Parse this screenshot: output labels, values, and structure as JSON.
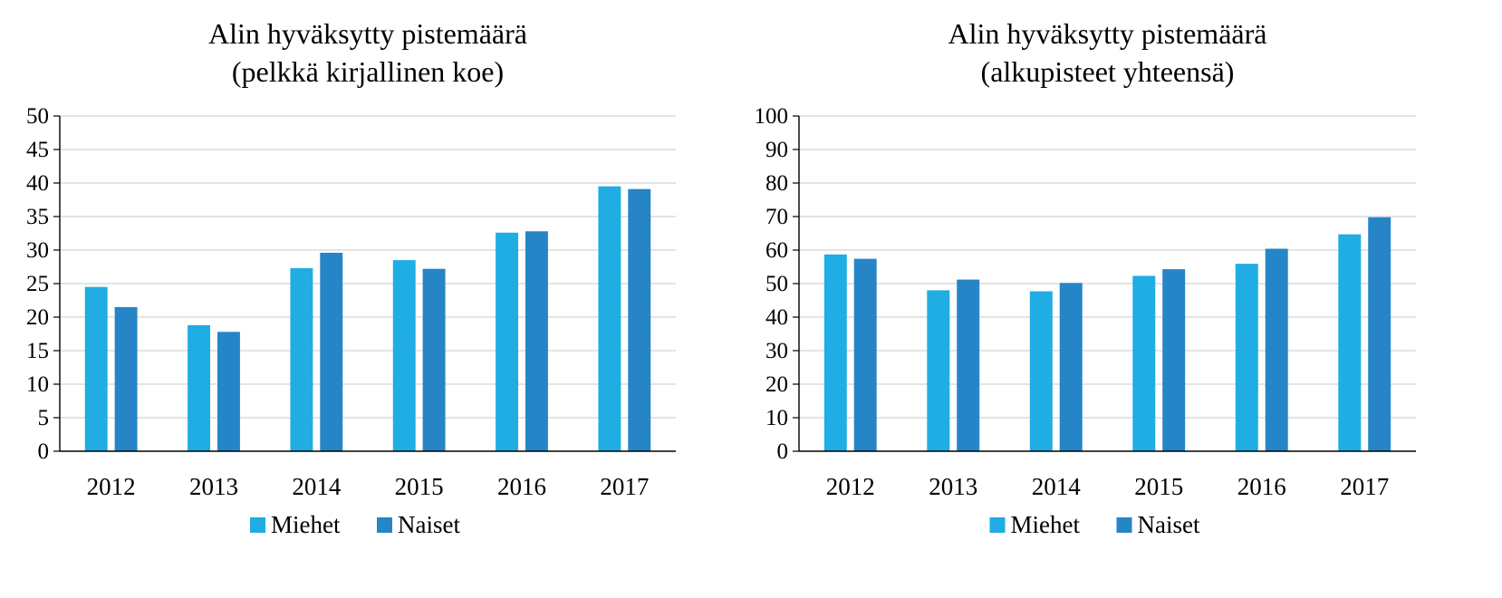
{
  "chart_data": [
    {
      "type": "bar",
      "title": "Alin hyväksytty pistemäärä",
      "subtitle": "(pelkkä kirjallinen koe)",
      "xlabel": "",
      "ylabel": "",
      "categories": [
        "2012",
        "2013",
        "2014",
        "2015",
        "2016",
        "2017"
      ],
      "series": [
        {
          "name": "Miehet",
          "color": "#1FADE4",
          "values": [
            24.5,
            18.8,
            27.3,
            28.5,
            32.6,
            39.5
          ]
        },
        {
          "name": "Naiset",
          "color": "#2585C7",
          "values": [
            21.5,
            17.8,
            29.6,
            27.2,
            32.8,
            39.1
          ]
        }
      ],
      "ylim": [
        0,
        50
      ],
      "yticks": [
        "0",
        "5",
        "10",
        "15",
        "20",
        "25",
        "30",
        "35",
        "40",
        "45",
        "50"
      ],
      "grid": true,
      "legend_position": "bottom"
    },
    {
      "type": "bar",
      "title": "Alin hyväksytty pistemäärä",
      "subtitle": "(alkupisteet yhteensä)",
      "xlabel": "",
      "ylabel": "",
      "categories": [
        "2012",
        "2013",
        "2014",
        "2015",
        "2016",
        "2017"
      ],
      "series": [
        {
          "name": "Miehet",
          "color": "#1FADE4",
          "values": [
            58.7,
            48.0,
            47.7,
            52.3,
            55.9,
            64.7
          ]
        },
        {
          "name": "Naiset",
          "color": "#2585C7",
          "values": [
            57.4,
            51.2,
            50.2,
            54.3,
            60.4,
            69.8
          ]
        }
      ],
      "ylim": [
        0,
        100
      ],
      "yticks": [
        "0",
        "10",
        "20",
        "30",
        "40",
        "50",
        "60",
        "70",
        "80",
        "90",
        "100"
      ],
      "grid": true,
      "legend_position": "bottom"
    }
  ]
}
